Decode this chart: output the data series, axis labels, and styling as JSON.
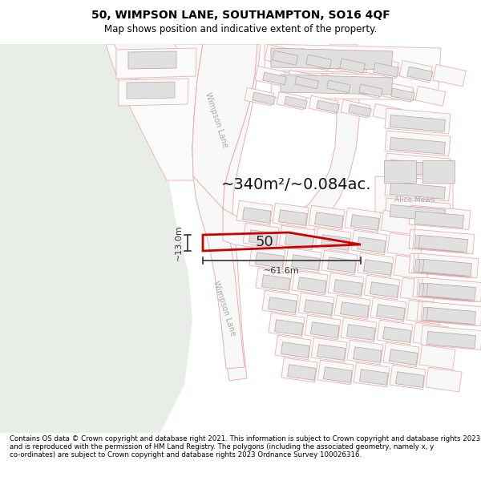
{
  "title": "50, WIMPSON LANE, SOUTHAMPTON, SO16 4QF",
  "subtitle": "Map shows position and indicative extent of the property.",
  "footer": "Contains OS data © Crown copyright and database right 2021. This information is subject to Crown copyright and database rights 2023 and is reproduced with the permission of HM Land Registry. The polygons (including the associated geometry, namely x, y co-ordinates) are subject to Crown copyright and database rights 2023 Ordnance Survey 100026316.",
  "area_label": "~340m²/~0.084ac.",
  "width_label": "~61.6m",
  "height_label": "~13.0m",
  "property_number": "50",
  "street_label_upper": "Wimpson Lane",
  "street_label_lower": "Wimpson Lane",
  "alice_mews_label": "Alice Mews",
  "map_bg": "#ffffff",
  "park_color": "#e8ede8",
  "road_fill": "#f5f5f5",
  "road_outline": "#e8b0b0",
  "plot_line_color": "#cc0000",
  "building_fill": "#e0e0e0",
  "building_edge": "#c0a0a0",
  "parcel_line": "#e8b0b0",
  "dim_line_color": "#333333",
  "title_color": "#000000",
  "footer_color": "#000000",
  "label_color": "#aaaaaa",
  "title_fontsize": 10,
  "subtitle_fontsize": 8.5,
  "footer_fontsize": 6.2
}
